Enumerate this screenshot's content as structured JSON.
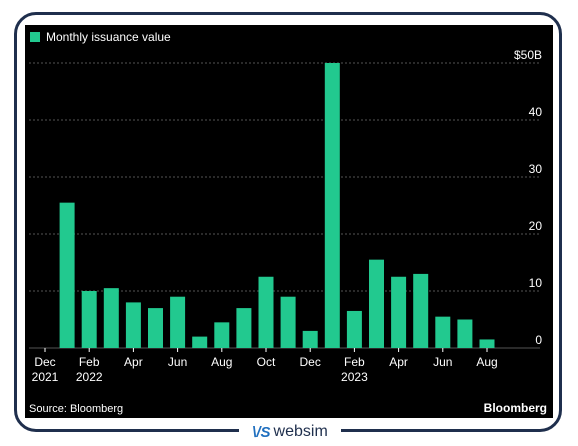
{
  "colors": {
    "bar": "#22c98f",
    "background": "#000000",
    "grid": "#555555",
    "text": "#ffffff"
  },
  "chart_data": {
    "type": "bar",
    "legend": "Monthly issuance value",
    "categories": [
      "Dec 2021",
      "Jan 2022",
      "Feb 2022",
      "Mar 2022",
      "Apr 2022",
      "May 2022",
      "Jun 2022",
      "Jul 2022",
      "Aug 2022",
      "Sep 2022",
      "Oct 2022",
      "Nov 2022",
      "Dec 2022",
      "Jan 2023",
      "Feb 2023",
      "Mar 2023",
      "Apr 2023",
      "May 2023",
      "Jun 2023",
      "Jul 2023",
      "Aug 2023"
    ],
    "values": [
      0,
      25.5,
      10,
      10.5,
      8,
      7,
      9,
      2,
      4.5,
      7,
      12.5,
      9,
      3,
      50,
      6.5,
      15.5,
      12.5,
      13,
      5.5,
      5,
      1.5
    ],
    "ylim": [
      0,
      50
    ],
    "yticks": [
      "$50B",
      "40",
      "30",
      "20",
      "10",
      "0"
    ],
    "ytick_values": [
      50,
      40,
      30,
      20,
      10,
      0
    ],
    "xtick_labels": [
      {
        "index": 0,
        "line1": "Dec",
        "line2": "2021"
      },
      {
        "index": 2,
        "line1": "Feb",
        "line2": "2022"
      },
      {
        "index": 4,
        "line1": "Apr",
        "line2": ""
      },
      {
        "index": 6,
        "line1": "Jun",
        "line2": ""
      },
      {
        "index": 8,
        "line1": "Aug",
        "line2": ""
      },
      {
        "index": 10,
        "line1": "Oct",
        "line2": ""
      },
      {
        "index": 12,
        "line1": "Dec",
        "line2": ""
      },
      {
        "index": 14,
        "line1": "Feb",
        "line2": "2023"
      },
      {
        "index": 16,
        "line1": "Apr",
        "line2": ""
      },
      {
        "index": 18,
        "line1": "Jun",
        "line2": ""
      },
      {
        "index": 20,
        "line1": "Aug",
        "line2": ""
      }
    ],
    "grid": true,
    "source": "Source: Bloomberg",
    "brand": "Bloomberg"
  },
  "watermark": {
    "logo": "\\/S",
    "text": "websim"
  }
}
